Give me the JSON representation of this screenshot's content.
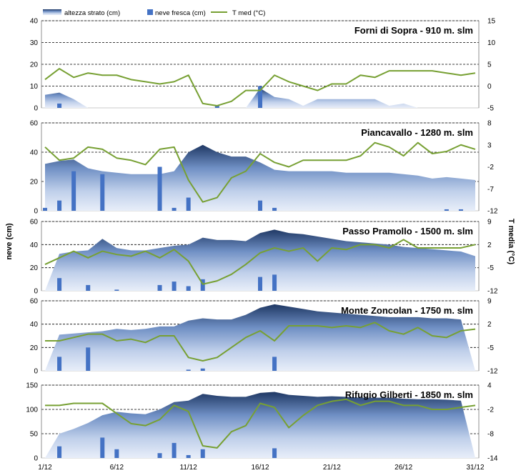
{
  "legend": {
    "snow_depth": "altezza strato (cm)",
    "fresh_snow": "neve fresca (cm)",
    "temperature": "T med (°C)"
  },
  "axis_labels": {
    "left": "neve (cm)",
    "right": "T media (°C)"
  },
  "x_ticks": [
    "1/12",
    "6/12",
    "11/12",
    "16/12",
    "21/12",
    "26/12",
    "31/12"
  ],
  "colors": {
    "depth_dark": "#1f3864",
    "depth_light": "#dbe5f5",
    "fresh_bar": "#4472c4",
    "temp_line": "#77a033"
  },
  "chart_data": [
    {
      "type": "area",
      "title": "Forni di Sopra - 910 m. slm",
      "x": [
        1,
        2,
        3,
        4,
        5,
        6,
        7,
        8,
        9,
        10,
        11,
        12,
        13,
        14,
        15,
        16,
        17,
        18,
        19,
        20,
        21,
        22,
        23,
        24,
        25,
        26,
        27,
        28,
        29,
        30,
        31
      ],
      "left_ylim": [
        0,
        40
      ],
      "left_ticks": [
        0,
        10,
        20,
        30,
        40
      ],
      "right_ylim": [
        -5,
        15
      ],
      "right_ticks": [
        -5,
        0,
        5,
        10,
        15
      ],
      "series": [
        {
          "name": "altezza strato (cm)",
          "type": "area",
          "values": [
            6,
            7,
            4,
            0,
            0,
            0,
            0,
            0,
            0,
            0,
            0,
            0,
            0,
            0,
            0,
            9,
            5,
            4,
            1,
            4,
            4,
            4,
            4,
            4,
            1,
            2,
            0,
            0,
            0,
            0,
            0
          ]
        },
        {
          "name": "neve fresca (cm)",
          "type": "bar",
          "values": [
            0,
            2,
            0,
            0,
            0,
            0,
            0,
            0,
            0,
            0,
            0,
            0,
            1,
            0,
            0,
            10,
            0,
            0,
            0,
            0,
            0,
            0,
            0,
            0,
            0,
            0,
            0,
            0,
            0,
            0,
            0
          ]
        },
        {
          "name": "T med (°C)",
          "type": "line",
          "axis": "right",
          "values": [
            1.5,
            4,
            2,
            3,
            2.5,
            2.5,
            1.5,
            1,
            0.5,
            1,
            2.5,
            -4,
            -4.5,
            -3.5,
            -1,
            -1,
            2.5,
            1,
            0,
            -1,
            0.5,
            0.5,
            2.5,
            2,
            3.5,
            3.5,
            3.5,
            3.5,
            3,
            2.5,
            3
          ]
        }
      ]
    },
    {
      "type": "area",
      "title": "Piancavallo - 1280 m. slm",
      "x": [
        1,
        2,
        3,
        4,
        5,
        6,
        7,
        8,
        9,
        10,
        11,
        12,
        13,
        14,
        15,
        16,
        17,
        18,
        19,
        20,
        21,
        22,
        23,
        24,
        25,
        26,
        27,
        28,
        29,
        30,
        31
      ],
      "left_ylim": [
        0,
        60
      ],
      "left_ticks": [
        0,
        20,
        40,
        60
      ],
      "right_ylim": [
        -12,
        8
      ],
      "right_ticks": [
        -12,
        -7,
        -2,
        3,
        8
      ],
      "series": [
        {
          "name": "altezza strato (cm)",
          "type": "area",
          "values": [
            32,
            34,
            35,
            29,
            27,
            26,
            25,
            25,
            25,
            27,
            40,
            45,
            40,
            37,
            37,
            33,
            28,
            27,
            27,
            27,
            27,
            26,
            26,
            26,
            26,
            25,
            24,
            22,
            23,
            22,
            21
          ]
        },
        {
          "name": "neve fresca (cm)",
          "type": "bar",
          "values": [
            2,
            7,
            27,
            0,
            25,
            0,
            0,
            0,
            30,
            2,
            9,
            0,
            0,
            0,
            0,
            7,
            2,
            0,
            0,
            0,
            0,
            0,
            0,
            0,
            0,
            0,
            0,
            0,
            1,
            1,
            0
          ]
        },
        {
          "name": "T med (°C)",
          "type": "line",
          "axis": "right",
          "values": [
            2.5,
            -0.5,
            0,
            2.5,
            2,
            0,
            -0.5,
            -1.5,
            2,
            2.5,
            -5,
            -10,
            -9,
            -4.5,
            -3,
            1,
            -1,
            -2,
            -0.5,
            -0.5,
            -0.5,
            -0.5,
            0.5,
            3.5,
            2.5,
            0.5,
            3.5,
            1,
            1.5,
            3,
            2
          ]
        }
      ]
    },
    {
      "type": "area",
      "title": "Passo Pramollo - 1500 m. slm",
      "x": [
        1,
        2,
        3,
        4,
        5,
        6,
        7,
        8,
        9,
        10,
        11,
        12,
        13,
        14,
        15,
        16,
        17,
        18,
        19,
        20,
        21,
        22,
        23,
        24,
        25,
        26,
        27,
        28,
        29,
        30,
        31
      ],
      "left_ylim": [
        0,
        60
      ],
      "left_ticks": [
        0,
        20,
        40,
        60
      ],
      "right_ylim": [
        -12,
        9
      ],
      "right_ticks": [
        -12,
        -5,
        2,
        9
      ],
      "series": [
        {
          "name": "altezza strato (cm)",
          "type": "area",
          "values": [
            0,
            32,
            34,
            35,
            45,
            37,
            35,
            35,
            37,
            39,
            40,
            46,
            44,
            44,
            43,
            50,
            53,
            50,
            49,
            47,
            45,
            43,
            42,
            41,
            40,
            38,
            37,
            36,
            35,
            34,
            30
          ]
        },
        {
          "name": "neve fresca (cm)",
          "type": "bar",
          "values": [
            0,
            11,
            0,
            5,
            0,
            1,
            0,
            0,
            5,
            8,
            4,
            10,
            0,
            0,
            0,
            12,
            14,
            0,
            0,
            0,
            0,
            0,
            0,
            0,
            0,
            0,
            0,
            0,
            0,
            0,
            0
          ]
        },
        {
          "name": "T med (°C)",
          "type": "line",
          "axis": "right",
          "values": [
            -4,
            -2,
            0,
            -2,
            0,
            -1,
            -1.5,
            0,
            -2,
            0.5,
            -3,
            -10,
            -9,
            -7,
            -4,
            -0.5,
            1,
            0,
            1,
            -3,
            1,
            0.5,
            2,
            2,
            1,
            3.5,
            1,
            1,
            1,
            1,
            2
          ]
        }
      ]
    },
    {
      "type": "area",
      "title": "Monte Zoncolan - 1750 m. slm",
      "x": [
        1,
        2,
        3,
        4,
        5,
        6,
        7,
        8,
        9,
        10,
        11,
        12,
        13,
        14,
        15,
        16,
        17,
        18,
        19,
        20,
        21,
        22,
        23,
        24,
        25,
        26,
        27,
        28,
        29,
        30,
        31
      ],
      "left_ylim": [
        0,
        60
      ],
      "left_ticks": [
        0,
        20,
        40,
        60
      ],
      "right_ylim": [
        -12,
        9
      ],
      "right_ticks": [
        -12,
        -5,
        2,
        9
      ],
      "series": [
        {
          "name": "altezza strato (cm)",
          "type": "area",
          "values": [
            0,
            31,
            32,
            33,
            34,
            36,
            35,
            36,
            38,
            38,
            43,
            45,
            44,
            44,
            48,
            54,
            57,
            55,
            53,
            51,
            50,
            49,
            48,
            47,
            46,
            46,
            46,
            45,
            45,
            44,
            0
          ]
        },
        {
          "name": "neve fresca (cm)",
          "type": "bar",
          "values": [
            0,
            12,
            0,
            20,
            0,
            0,
            0,
            0,
            0,
            0,
            1,
            2,
            0,
            0,
            0,
            0,
            12,
            0,
            0,
            0,
            0,
            0,
            0,
            0,
            0,
            0,
            0,
            0,
            0,
            0,
            0
          ]
        },
        {
          "name": "T med (°C)",
          "type": "line",
          "axis": "right",
          "values": [
            -3,
            -3,
            -2,
            -1,
            -1,
            -3,
            -2.5,
            -3.5,
            -1.5,
            -1.5,
            -8,
            -9,
            -8,
            -5,
            -2,
            0,
            -3,
            1.5,
            1.5,
            1.5,
            1,
            1.5,
            1,
            2.5,
            0,
            -1,
            1,
            -1.5,
            -2,
            0,
            0.5
          ]
        }
      ]
    },
    {
      "type": "area",
      "title": "Rifugio Gilberti - 1850 m. slm",
      "x": [
        1,
        2,
        3,
        4,
        5,
        6,
        7,
        8,
        9,
        10,
        11,
        12,
        13,
        14,
        15,
        16,
        17,
        18,
        19,
        20,
        21,
        22,
        23,
        24,
        25,
        26,
        27,
        28,
        29,
        30,
        31
      ],
      "left_ylim": [
        0,
        150
      ],
      "left_ticks": [
        0,
        50,
        100,
        150
      ],
      "right_ylim": [
        -14,
        4
      ],
      "right_ticks": [
        -14,
        -8,
        -2,
        4
      ],
      "series": [
        {
          "name": "altezza strato (cm)",
          "type": "area",
          "values": [
            0,
            50,
            60,
            72,
            88,
            95,
            92,
            90,
            100,
            115,
            118,
            132,
            128,
            126,
            126,
            134,
            136,
            130,
            128,
            126,
            127,
            126,
            124,
            124,
            124,
            122,
            121,
            121,
            120,
            118,
            0
          ]
        },
        {
          "name": "neve fresca (cm)",
          "type": "bar",
          "values": [
            0,
            24,
            0,
            0,
            42,
            18,
            0,
            0,
            10,
            31,
            6,
            18,
            0,
            0,
            0,
            0,
            20,
            0,
            0,
            0,
            0,
            0,
            0,
            0,
            0,
            0,
            0,
            0,
            0,
            0,
            0
          ]
        },
        {
          "name": "T med (°C)",
          "type": "line",
          "axis": "right",
          "values": [
            -1,
            -1,
            -0.5,
            -0.5,
            -0.5,
            -3,
            -5.5,
            -6,
            -4.5,
            -1,
            -2.5,
            -11,
            -11.5,
            -7.5,
            -6,
            -0.5,
            -1.5,
            -6.5,
            -3.5,
            -1,
            0,
            0.5,
            -1,
            0,
            0,
            -1,
            -1,
            -2,
            -2,
            -1.5,
            -1
          ]
        }
      ]
    }
  ]
}
